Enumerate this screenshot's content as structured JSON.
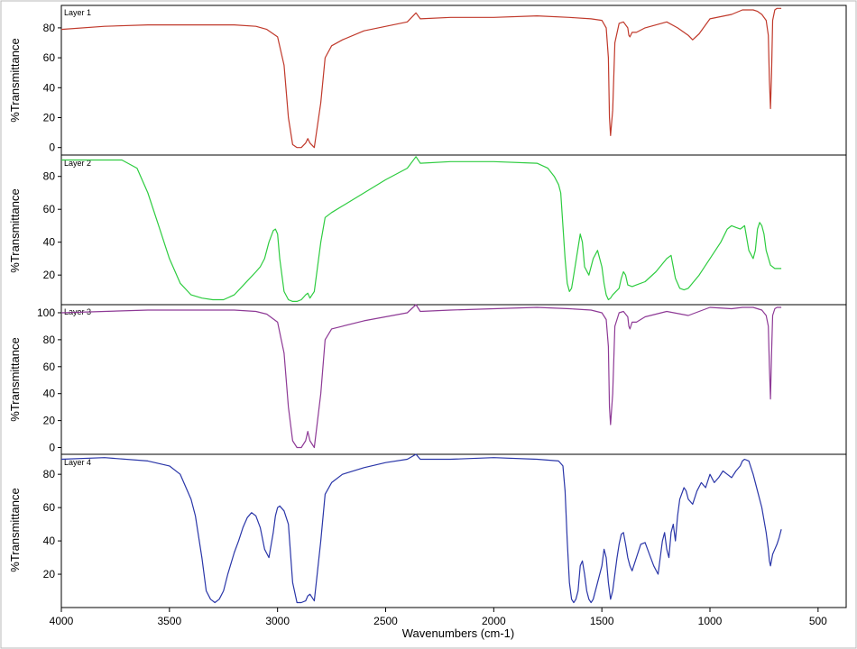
{
  "chart_data": {
    "type": "line",
    "title": "",
    "xlabel": "Wavenumbers (cm-1)",
    "xlim": [
      4000,
      370
    ],
    "x_ticks": [
      4000,
      3500,
      3000,
      2500,
      2000,
      1500,
      1000,
      500
    ],
    "panels": [
      {
        "name": "Layer 1",
        "ylabel": "%Transmittance",
        "ylim": [
          -5,
          95
        ],
        "y_ticks": [
          0,
          20,
          40,
          60,
          80
        ],
        "color": "#c0392b",
        "x": [
          4000,
          3800,
          3600,
          3400,
          3200,
          3100,
          3050,
          3000,
          2970,
          2950,
          2930,
          2910,
          2890,
          2870,
          2860,
          2850,
          2830,
          2800,
          2780,
          2750,
          2700,
          2600,
          2400,
          2360,
          2340,
          2200,
          2000,
          1800,
          1650,
          1550,
          1500,
          1480,
          1470,
          1465,
          1460,
          1450,
          1440,
          1420,
          1400,
          1380,
          1375,
          1370,
          1360,
          1340,
          1300,
          1200,
          1150,
          1100,
          1080,
          1050,
          1000,
          900,
          850,
          800,
          780,
          760,
          740,
          730,
          725,
          720,
          715,
          710,
          700,
          690,
          670
        ],
        "y": [
          79,
          81,
          82,
          82,
          82,
          81,
          79,
          74,
          55,
          20,
          2,
          0,
          0,
          3,
          6,
          3,
          0,
          30,
          60,
          68,
          72,
          78,
          84,
          90,
          86,
          87,
          87,
          88,
          87,
          86,
          85,
          80,
          60,
          20,
          8,
          25,
          70,
          83,
          84,
          80,
          75,
          74,
          77,
          77,
          80,
          84,
          80,
          75,
          72,
          76,
          86,
          89,
          92,
          92,
          91,
          89,
          85,
          75,
          45,
          26,
          50,
          85,
          92,
          93,
          93
        ]
      },
      {
        "name": "Layer 2",
        "ylabel": "%Transmittance",
        "ylim": [
          2,
          93
        ],
        "y_ticks": [
          20,
          40,
          60,
          80
        ],
        "color": "#2ecc40",
        "x": [
          4000,
          3800,
          3720,
          3650,
          3600,
          3550,
          3500,
          3450,
          3400,
          3350,
          3300,
          3250,
          3200,
          3150,
          3100,
          3080,
          3060,
          3040,
          3020,
          3010,
          3000,
          2990,
          2970,
          2950,
          2930,
          2910,
          2890,
          2870,
          2860,
          2850,
          2830,
          2800,
          2780,
          2750,
          2700,
          2600,
          2500,
          2400,
          2360,
          2340,
          2200,
          2000,
          1800,
          1750,
          1720,
          1700,
          1690,
          1680,
          1670,
          1660,
          1650,
          1640,
          1630,
          1600,
          1590,
          1580,
          1560,
          1540,
          1520,
          1500,
          1490,
          1480,
          1470,
          1460,
          1450,
          1420,
          1410,
          1400,
          1390,
          1380,
          1360,
          1340,
          1300,
          1250,
          1200,
          1180,
          1170,
          1160,
          1140,
          1120,
          1100,
          1050,
          1000,
          950,
          920,
          900,
          880,
          860,
          840,
          820,
          800,
          790,
          780,
          770,
          760,
          750,
          740,
          720,
          700,
          680,
          670
        ],
        "y": [
          90,
          90,
          90,
          85,
          70,
          50,
          30,
          15,
          8,
          6,
          5,
          5,
          8,
          15,
          22,
          25,
          30,
          40,
          47,
          48,
          45,
          30,
          10,
          5,
          4,
          4,
          5,
          8,
          9,
          6,
          10,
          40,
          55,
          58,
          62,
          70,
          78,
          85,
          92,
          88,
          89,
          89,
          88,
          85,
          80,
          75,
          70,
          50,
          30,
          15,
          10,
          12,
          20,
          45,
          40,
          25,
          20,
          30,
          35,
          25,
          15,
          8,
          5,
          6,
          8,
          12,
          18,
          22,
          20,
          14,
          13,
          14,
          16,
          22,
          30,
          32,
          25,
          18,
          12,
          11,
          12,
          20,
          30,
          40,
          48,
          50,
          49,
          48,
          50,
          35,
          30,
          35,
          48,
          52,
          50,
          45,
          35,
          26,
          24,
          24,
          24
        ]
      },
      {
        "name": "Layer 3",
        "ylabel": "%Transmittance",
        "ylim": [
          -5,
          106
        ],
        "y_ticks": [
          0,
          20,
          40,
          60,
          80,
          100
        ],
        "color": "#8e3a96",
        "x": [
          4000,
          3800,
          3600,
          3400,
          3200,
          3100,
          3050,
          3000,
          2970,
          2950,
          2930,
          2910,
          2890,
          2870,
          2860,
          2850,
          2830,
          2800,
          2780,
          2750,
          2700,
          2600,
          2400,
          2360,
          2340,
          2200,
          2000,
          1800,
          1650,
          1550,
          1500,
          1480,
          1470,
          1465,
          1460,
          1450,
          1440,
          1420,
          1400,
          1380,
          1375,
          1370,
          1360,
          1340,
          1300,
          1200,
          1100,
          1000,
          900,
          850,
          800,
          780,
          760,
          740,
          730,
          725,
          720,
          715,
          710,
          700,
          690,
          670
        ],
        "y": [
          100,
          101,
          102,
          102,
          102,
          101,
          99,
          93,
          70,
          30,
          5,
          0,
          0,
          5,
          12,
          5,
          0,
          40,
          80,
          88,
          90,
          94,
          100,
          106,
          101,
          102,
          103,
          104,
          103,
          102,
          100,
          95,
          75,
          30,
          17,
          40,
          90,
          100,
          101,
          97,
          90,
          88,
          93,
          93,
          97,
          101,
          98,
          104,
          103,
          104,
          104,
          103,
          102,
          98,
          90,
          60,
          36,
          70,
          98,
          103,
          104,
          104
        ]
      },
      {
        "name": "Layer 4",
        "ylabel": "%Transmittance",
        "ylim": [
          0,
          92
        ],
        "y_ticks": [
          20,
          40,
          60,
          80
        ],
        "color": "#2a36a8",
        "x": [
          4000,
          3800,
          3600,
          3500,
          3450,
          3400,
          3380,
          3350,
          3330,
          3310,
          3290,
          3270,
          3250,
          3230,
          3200,
          3180,
          3160,
          3140,
          3120,
          3100,
          3080,
          3060,
          3040,
          3020,
          3010,
          3000,
          2990,
          2970,
          2950,
          2930,
          2910,
          2890,
          2870,
          2860,
          2850,
          2830,
          2800,
          2780,
          2750,
          2700,
          2600,
          2500,
          2400,
          2360,
          2340,
          2200,
          2000,
          1800,
          1700,
          1680,
          1670,
          1660,
          1650,
          1640,
          1630,
          1620,
          1610,
          1600,
          1590,
          1580,
          1570,
          1560,
          1550,
          1540,
          1520,
          1500,
          1490,
          1480,
          1470,
          1460,
          1450,
          1440,
          1430,
          1420,
          1410,
          1400,
          1390,
          1380,
          1370,
          1360,
          1340,
          1320,
          1300,
          1280,
          1260,
          1240,
          1230,
          1220,
          1210,
          1200,
          1190,
          1180,
          1170,
          1160,
          1150,
          1140,
          1120,
          1110,
          1100,
          1080,
          1060,
          1040,
          1020,
          1000,
          980,
          960,
          940,
          920,
          900,
          880,
          860,
          850,
          840,
          820,
          800,
          780,
          760,
          740,
          730,
          725,
          720,
          710,
          700,
          690,
          680,
          670
        ],
        "y": [
          89,
          90,
          88,
          85,
          80,
          65,
          55,
          30,
          10,
          5,
          3,
          5,
          10,
          20,
          33,
          40,
          48,
          54,
          57,
          55,
          48,
          35,
          30,
          45,
          55,
          60,
          61,
          58,
          50,
          15,
          3,
          3,
          4,
          7,
          8,
          4,
          40,
          68,
          75,
          80,
          84,
          87,
          89,
          92,
          89,
          89,
          90,
          89,
          88,
          85,
          70,
          40,
          15,
          5,
          3,
          5,
          10,
          25,
          28,
          20,
          10,
          5,
          3,
          5,
          15,
          25,
          35,
          30,
          15,
          5,
          10,
          20,
          30,
          38,
          44,
          45,
          38,
          30,
          25,
          22,
          30,
          38,
          39,
          32,
          25,
          20,
          30,
          40,
          45,
          35,
          30,
          45,
          50,
          40,
          55,
          65,
          72,
          70,
          65,
          62,
          70,
          75,
          72,
          80,
          75,
          78,
          82,
          80,
          78,
          82,
          85,
          88,
          89,
          88,
          80,
          70,
          60,
          45,
          35,
          28,
          25,
          32,
          35,
          38,
          42,
          47
        ]
      }
    ]
  }
}
